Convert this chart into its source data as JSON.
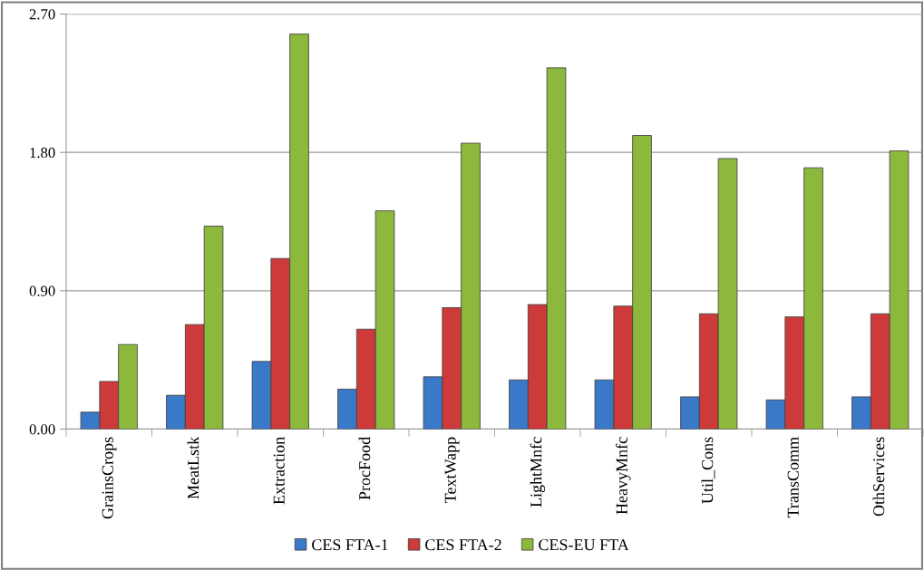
{
  "chart_data": {
    "type": "bar",
    "categories": [
      "GrainsCrops",
      "MeatLstk",
      "Extraction",
      "ProcFood",
      "TextWapp",
      "LightMnfc",
      "HeavyMnfc",
      "Util_Cons",
      "TransComm",
      "OthServices"
    ],
    "series": [
      {
        "name": "CES FTA-1",
        "color": "#3a78c8",
        "values": [
          0.11,
          0.22,
          0.44,
          0.26,
          0.34,
          0.32,
          0.32,
          0.21,
          0.19,
          0.21
        ]
      },
      {
        "name": "CES FTA-2",
        "color": "#cc3a3a",
        "values": [
          0.31,
          0.68,
          1.11,
          0.65,
          0.79,
          0.81,
          0.8,
          0.75,
          0.73,
          0.75
        ]
      },
      {
        "name": "CES-EU FTA",
        "color": "#8cb83c",
        "values": [
          0.55,
          1.32,
          2.57,
          1.42,
          1.86,
          2.35,
          1.91,
          1.76,
          1.7,
          1.81
        ]
      }
    ],
    "ylim": [
      0,
      2.7
    ],
    "yticks": [
      {
        "value": 0,
        "label": "0.00"
      },
      {
        "value": 0.9,
        "label": "0.90"
      },
      {
        "value": 1.8,
        "label": "1.80"
      },
      {
        "value": 2.7,
        "label": "2.70"
      }
    ],
    "grid": "y",
    "legend": "bottom"
  }
}
